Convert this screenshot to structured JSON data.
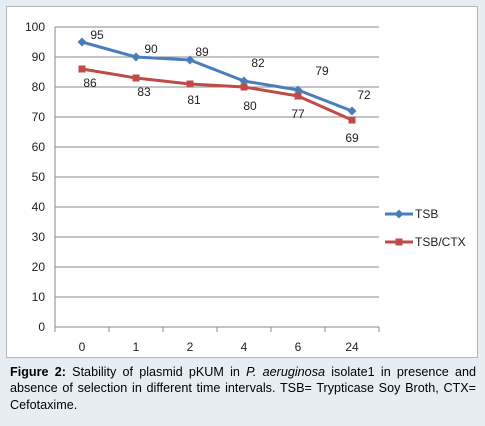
{
  "chart_data": {
    "type": "line",
    "categories": [
      "0",
      "1",
      "2",
      "4",
      "6",
      "24"
    ],
    "ylim": [
      0,
      100
    ],
    "yticks": [
      0,
      10,
      20,
      30,
      40,
      50,
      60,
      70,
      80,
      90,
      100
    ],
    "grid": true,
    "legend_position": "right",
    "series": [
      {
        "name": "TSB",
        "values": [
          95,
          90,
          89,
          82,
          79,
          72
        ],
        "color": "#4a7ebb",
        "marker": "diamond"
      },
      {
        "name": "TSB/CTX",
        "values": [
          86,
          83,
          81,
          80,
          77,
          69
        ],
        "color": "#be4b48",
        "marker": "square"
      }
    ]
  },
  "caption": {
    "label": "Figure 2:",
    "text_1": " Stability of plasmid pKUM in ",
    "species": "P. aeruginosa",
    "text_2": " isolate1 in presence and absence of selection in different time intervals. TSB= Trypticase Soy Broth, CTX= Cefotaxime."
  }
}
